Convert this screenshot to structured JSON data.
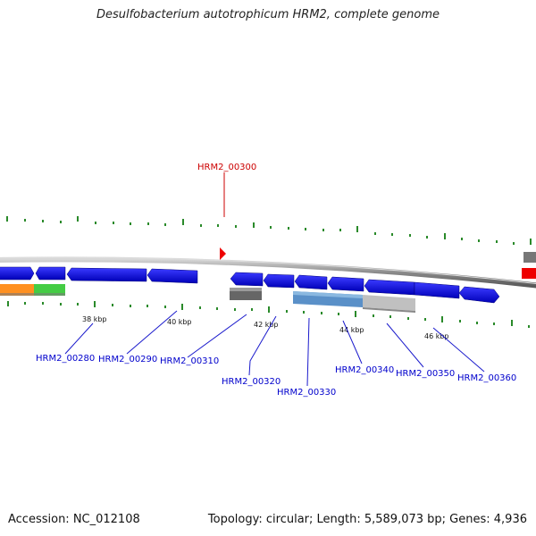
{
  "title": "Desulfobacterium autotrophicum HRM2, complete genome",
  "footer": {
    "accession": "Accession: NC_012108",
    "summary": "Topology: circular; Length: 5,589,073 bp; Genes: 4,936"
  },
  "colors": {
    "forward_gene": "#1010e0",
    "highlight_gene": "#ee0000",
    "rna_gray": "#666666",
    "orange": "#ff9020",
    "green": "#44cc44",
    "light_blue": "#5a90c8",
    "light_gray": "#c0c0c0",
    "tick_green": "#2a8a2a",
    "label_blue": "#0000cc",
    "label_red": "#cc0000"
  },
  "scale_labels": [
    "38 kbp",
    "40 kbp",
    "42 kbp",
    "44 kbp",
    "46 kbp"
  ],
  "gene_labels": [
    {
      "name": "HRM2_00300",
      "color": "red"
    },
    {
      "name": "HRM2_00280",
      "color": "blue"
    },
    {
      "name": "HRM2_00290",
      "color": "blue"
    },
    {
      "name": "HRM2_00310",
      "color": "blue"
    },
    {
      "name": "HRM2_00320",
      "color": "blue"
    },
    {
      "name": "HRM2_00330",
      "color": "blue"
    },
    {
      "name": "HRM2_00340",
      "color": "blue"
    },
    {
      "name": "HRM2_00350",
      "color": "blue"
    },
    {
      "name": "HRM2_00360",
      "color": "blue"
    }
  ]
}
